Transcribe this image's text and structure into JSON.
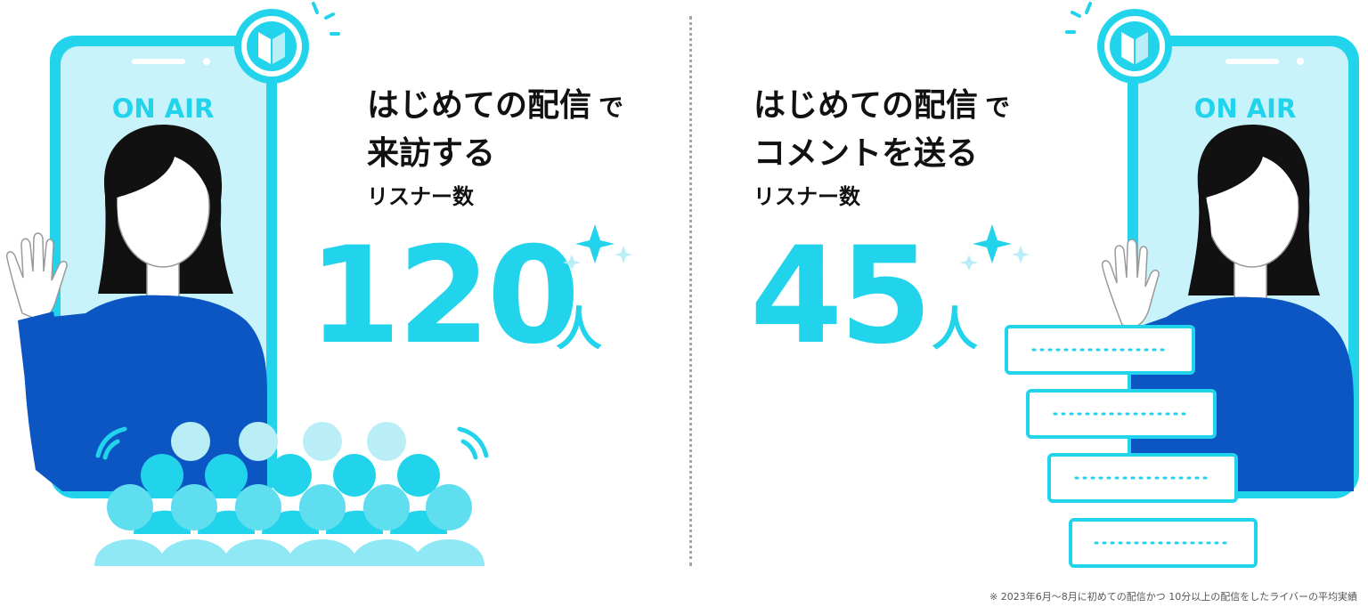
{
  "left_panel": {
    "phone_label": "ON AIR",
    "heading_line1_main": "はじめての配信",
    "heading_line1_particle": "で",
    "heading_line2": "来訪する",
    "heading_line3": "リスナー数",
    "value": "120",
    "unit": "人"
  },
  "right_panel": {
    "phone_label": "ON AIR",
    "heading_line1_main": "はじめての配信",
    "heading_line1_particle": "で",
    "heading_line2": "コメントを送る",
    "heading_line3": "リスナー数",
    "value": "45",
    "unit": "人"
  },
  "footnote": "※ 2023年6月～8月に初めての配信かつ 10分以上の配信をしたライバーの平均実績",
  "colors": {
    "accent": "#21d4eb",
    "phone_fill": "#c9f3fa",
    "shirt": "#0c56c4",
    "hair": "#111111",
    "crowd_light": "#b9eef6",
    "crowd_mid": "#5fdeef",
    "crowd_dark": "#21d4eb"
  },
  "icons": [
    "beginner-mark-icon",
    "sparkle-icon",
    "wave-icon",
    "comment-bubble-icon"
  ]
}
